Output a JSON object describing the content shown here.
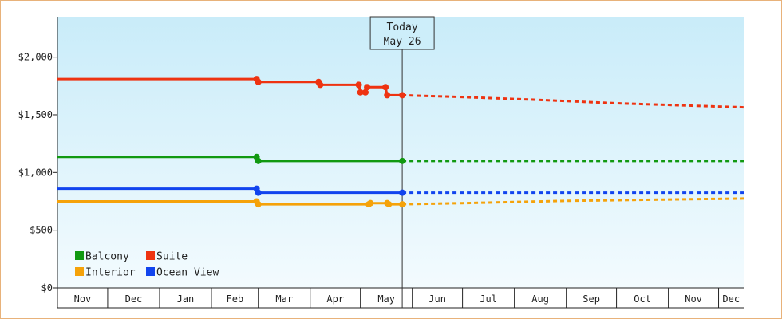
{
  "chart_data": {
    "type": "line",
    "title": "",
    "xlabel": "",
    "ylabel": "",
    "x_axis_type": "date",
    "xlim": [
      "2014-11-01",
      "2015-12-16"
    ],
    "ylim": [
      0,
      2350
    ],
    "y_ticks": [
      0,
      500,
      1000,
      1500,
      2000
    ],
    "y_tick_labels": [
      "$0",
      "$500",
      "$1,000",
      "$1,500",
      "$2,000"
    ],
    "x_tick_labels": [
      {
        "label": "Nov",
        "date": "2014-11-01"
      },
      {
        "label": "Dec",
        "date": "2014-12-01"
      },
      {
        "label": "Jan",
        "date": "2015-01-01"
      },
      {
        "label": "Feb",
        "date": "2015-02-01"
      },
      {
        "label": "Mar",
        "date": "2015-03-01"
      },
      {
        "label": "Apr",
        "date": "2015-04-01"
      },
      {
        "label": "May",
        "date": "2015-05-01"
      },
      {
        "label": "Jun",
        "date": "2015-06-01"
      },
      {
        "label": "Jul",
        "date": "2015-07-01"
      },
      {
        "label": "Aug",
        "date": "2015-08-01"
      },
      {
        "label": "Sep",
        "date": "2015-09-01"
      },
      {
        "label": "Oct",
        "date": "2015-10-01"
      },
      {
        "label": "Nov",
        "date": "2015-11-01"
      },
      {
        "label": "Dec",
        "date": "2015-12-01"
      }
    ],
    "today": {
      "date": "2015-05-26",
      "label_line1": "Today",
      "label_line2": "May 26"
    },
    "grid": false,
    "legend_position": "bottom-left",
    "series": [
      {
        "name": "Balcony",
        "color": "#119911",
        "actual": [
          {
            "x": "2014-11-01",
            "y": 1135
          },
          {
            "x": "2015-02-28",
            "y": 1135
          },
          {
            "x": "2015-03-01",
            "y": 1100
          },
          {
            "x": "2015-05-26",
            "y": 1100
          }
        ],
        "forecast": [
          {
            "x": "2015-05-26",
            "y": 1100
          },
          {
            "x": "2015-12-16",
            "y": 1100
          }
        ]
      },
      {
        "name": "Suite",
        "color": "#ee3311",
        "actual": [
          {
            "x": "2014-11-01",
            "y": 1810
          },
          {
            "x": "2015-02-28",
            "y": 1810
          },
          {
            "x": "2015-03-01",
            "y": 1785
          },
          {
            "x": "2015-04-06",
            "y": 1785
          },
          {
            "x": "2015-04-07",
            "y": 1760
          },
          {
            "x": "2015-04-30",
            "y": 1760
          },
          {
            "x": "2015-05-01",
            "y": 1695
          },
          {
            "x": "2015-05-04",
            "y": 1695
          },
          {
            "x": "2015-05-05",
            "y": 1740
          },
          {
            "x": "2015-05-16",
            "y": 1740
          },
          {
            "x": "2015-05-17",
            "y": 1670
          },
          {
            "x": "2015-05-26",
            "y": 1670
          }
        ],
        "forecast": [
          {
            "x": "2015-05-26",
            "y": 1670
          },
          {
            "x": "2015-06-30",
            "y": 1655
          },
          {
            "x": "2015-08-15",
            "y": 1630
          },
          {
            "x": "2015-10-01",
            "y": 1600
          },
          {
            "x": "2015-12-16",
            "y": 1565
          }
        ]
      },
      {
        "name": "Interior",
        "color": "#f5a20a",
        "actual": [
          {
            "x": "2014-11-01",
            "y": 750
          },
          {
            "x": "2015-02-28",
            "y": 750
          },
          {
            "x": "2015-03-01",
            "y": 725
          },
          {
            "x": "2015-05-06",
            "y": 725
          },
          {
            "x": "2015-05-07",
            "y": 735
          },
          {
            "x": "2015-05-17",
            "y": 735
          },
          {
            "x": "2015-05-18",
            "y": 725
          },
          {
            "x": "2015-05-26",
            "y": 725
          }
        ],
        "forecast": [
          {
            "x": "2015-05-26",
            "y": 725
          },
          {
            "x": "2015-07-01",
            "y": 735
          },
          {
            "x": "2015-09-01",
            "y": 755
          },
          {
            "x": "2015-12-16",
            "y": 775
          }
        ]
      },
      {
        "name": "Ocean View",
        "color": "#1144ee",
        "actual": [
          {
            "x": "2014-11-01",
            "y": 860
          },
          {
            "x": "2015-02-28",
            "y": 860
          },
          {
            "x": "2015-03-01",
            "y": 825
          },
          {
            "x": "2015-05-26",
            "y": 825
          }
        ],
        "forecast": [
          {
            "x": "2015-05-26",
            "y": 825
          },
          {
            "x": "2015-12-16",
            "y": 825
          }
        ]
      }
    ],
    "markers": [
      {
        "series": "Suite",
        "x": "2015-02-28",
        "y": 1810
      },
      {
        "series": "Suite",
        "x": "2015-03-01",
        "y": 1785
      },
      {
        "series": "Suite",
        "x": "2015-04-06",
        "y": 1785
      },
      {
        "series": "Suite",
        "x": "2015-04-07",
        "y": 1760
      },
      {
        "series": "Suite",
        "x": "2015-04-30",
        "y": 1760
      },
      {
        "series": "Suite",
        "x": "2015-05-01",
        "y": 1695
      },
      {
        "series": "Suite",
        "x": "2015-05-04",
        "y": 1695
      },
      {
        "series": "Suite",
        "x": "2015-05-05",
        "y": 1740
      },
      {
        "series": "Suite",
        "x": "2015-05-16",
        "y": 1740
      },
      {
        "series": "Suite",
        "x": "2015-05-17",
        "y": 1670
      },
      {
        "series": "Suite",
        "x": "2015-05-26",
        "y": 1670
      },
      {
        "series": "Balcony",
        "x": "2015-02-28",
        "y": 1135
      },
      {
        "series": "Balcony",
        "x": "2015-03-01",
        "y": 1100
      },
      {
        "series": "Balcony",
        "x": "2015-05-26",
        "y": 1100
      },
      {
        "series": "Ocean View",
        "x": "2015-02-28",
        "y": 860
      },
      {
        "series": "Ocean View",
        "x": "2015-03-01",
        "y": 825
      },
      {
        "series": "Ocean View",
        "x": "2015-05-26",
        "y": 825
      },
      {
        "series": "Interior",
        "x": "2015-02-28",
        "y": 750
      },
      {
        "series": "Interior",
        "x": "2015-03-01",
        "y": 725
      },
      {
        "series": "Interior",
        "x": "2015-05-06",
        "y": 725
      },
      {
        "series": "Interior",
        "x": "2015-05-07",
        "y": 735
      },
      {
        "series": "Interior",
        "x": "2015-05-17",
        "y": 735
      },
      {
        "series": "Interior",
        "x": "2015-05-18",
        "y": 725
      },
      {
        "series": "Interior",
        "x": "2015-05-26",
        "y": 725
      }
    ],
    "legend_rows": [
      [
        "Balcony",
        "Suite"
      ],
      [
        "Interior",
        "Ocean View"
      ]
    ]
  }
}
